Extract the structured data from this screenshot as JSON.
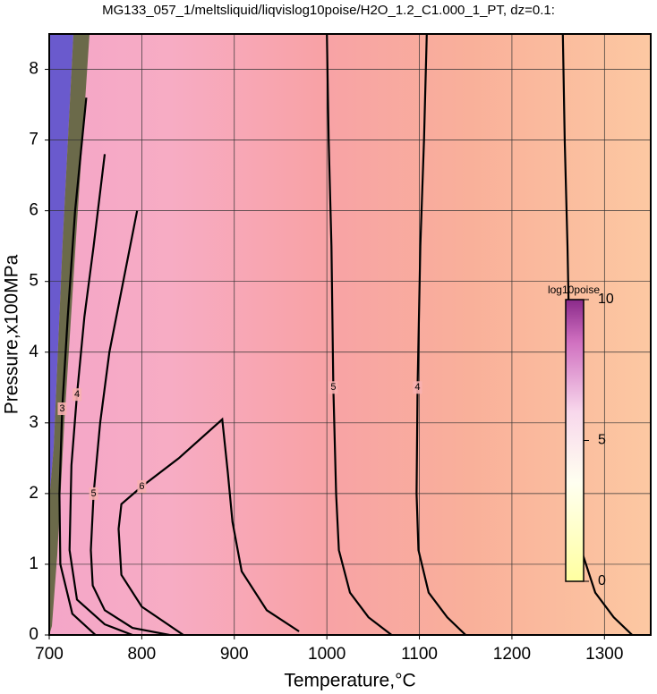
{
  "chart_data": {
    "type": "contour",
    "title": "MG133_057_1/meltsliquid/liqvislog10poise/H2O_1.2_C1.000_1_PT, dz=0.1:",
    "x_label": "Temperature,°C",
    "y_label": "Pressure,x100MPa",
    "xlim": [
      700,
      1350
    ],
    "ylim": [
      0,
      8.5
    ],
    "xticks": [
      700,
      800,
      900,
      1000,
      1100,
      1200,
      1300
    ],
    "yticks": [
      0,
      1,
      2,
      3,
      4,
      5,
      6,
      7,
      8
    ],
    "grid": true,
    "colorbar": {
      "label": "log10poise",
      "clim": [
        0,
        10
      ],
      "ticks": [
        0,
        5,
        10
      ]
    },
    "contours": [
      {
        "level": 3,
        "x": [
          1255,
          1257,
          1260,
          1263,
          1267,
          1275,
          1290,
          1310,
          1330
        ],
        "y": [
          8.5,
          7,
          5.5,
          3.5,
          2,
          1.2,
          0.6,
          0.25,
          0
        ]
      },
      {
        "level": 4,
        "x": [
          1108,
          1105,
          1101,
          1098,
          1097,
          1099,
          1110,
          1130,
          1150
        ],
        "y": [
          8.5,
          7,
          5.5,
          3.5,
          2,
          1.2,
          0.6,
          0.25,
          0
        ]
      },
      {
        "level": 5,
        "x": [
          1000,
          1002,
          1005,
          1007,
          1010,
          1013,
          1025,
          1045,
          1070
        ],
        "y": [
          8.5,
          7,
          5.5,
          3.5,
          2,
          1.2,
          0.6,
          0.25,
          0
        ]
      },
      {
        "level": 6,
        "x": [
          845,
          800,
          778,
          775,
          778,
          800,
          840,
          887,
          893,
          898,
          908,
          935,
          970
        ],
        "y": [
          0,
          0.4,
          0.85,
          1.5,
          1.85,
          2.1,
          2.5,
          3.05,
          2.3,
          1.6,
          0.9,
          0.35,
          0.05
        ]
      },
      {
        "level": 5,
        "x": [
          795,
          780,
          765,
          755,
          748,
          745,
          747,
          760,
          790,
          830
        ],
        "y": [
          6.0,
          5.0,
          4.0,
          3.0,
          2.0,
          1.2,
          0.7,
          0.35,
          0.1,
          0
        ]
      },
      {
        "level": 4,
        "x": [
          760,
          748,
          738,
          730,
          724,
          722,
          730,
          760,
          790
        ],
        "y": [
          6.8,
          5.5,
          4.5,
          3.4,
          2.4,
          1.2,
          0.5,
          0.15,
          0
        ]
      },
      {
        "level": 3,
        "x": [
          740,
          728,
          720,
          714,
          711,
          712,
          725,
          750
        ],
        "y": [
          7.6,
          6.0,
          4.5,
          3.2,
          2.0,
          1.0,
          0.3,
          0
        ]
      }
    ]
  }
}
